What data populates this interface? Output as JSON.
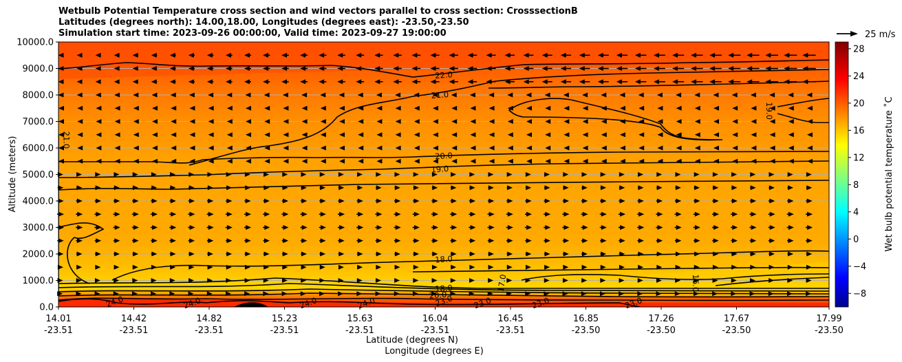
{
  "title_lines": [
    "Wetbulb Potential Temperature cross section and wind vectors parallel to cross section: CrosssectionB",
    "Latitudes (degrees north): 14.00,18.00, Longitudes (degrees east): -23.50,-23.50",
    "Simulation start time: 2023-09-26 00:00:00, Valid time: 2023-09-27 19:00:00"
  ],
  "chart_data": {
    "type": "heatmap",
    "xlabel": "Latitude (degrees N)",
    "xlabel2": "Longitude (degrees E)",
    "ylabel": "Altitude (meters)",
    "ylim": [
      0,
      10000
    ],
    "y_ticks": [
      "0.0",
      "1000.0",
      "2000.0",
      "3000.0",
      "4000.0",
      "5000.0",
      "6000.0",
      "7000.0",
      "8000.0",
      "9000.0",
      "10000.0"
    ],
    "x_ticks": [
      {
        "lat": "14.01",
        "lon": "-23.51"
      },
      {
        "lat": "14.42",
        "lon": "-23.51"
      },
      {
        "lat": "14.82",
        "lon": "-23.51"
      },
      {
        "lat": "15.23",
        "lon": "-23.51"
      },
      {
        "lat": "15.63",
        "lon": "-23.51"
      },
      {
        "lat": "16.04",
        "lon": "-23.51"
      },
      {
        "lat": "16.45",
        "lon": "-23.51"
      },
      {
        "lat": "16.85",
        "lon": "-23.50"
      },
      {
        "lat": "17.26",
        "lon": "-23.50"
      },
      {
        "lat": "17.67",
        "lon": "-23.50"
      },
      {
        "lat": "17.99",
        "lon": "-23.50"
      }
    ],
    "grid": "horizontal",
    "colorbar": {
      "label": "Wet bulb potential temperature ˚C",
      "range": [
        -10,
        29
      ],
      "ticks": [
        "−8",
        "−4",
        "0",
        "4",
        "8",
        "12",
        "16",
        "20",
        "24",
        "28"
      ],
      "colormap": "jet"
    },
    "quiver_key": {
      "label": "25 m/s",
      "speed": 25
    },
    "contour_labels": [
      {
        "text": "22.0",
        "lat": 16.0,
        "alt": 8750
      },
      {
        "text": "21.0",
        "lat": 15.98,
        "alt": 8000
      },
      {
        "text": "21.0",
        "lat": 14.05,
        "alt": 6300
      },
      {
        "text": "19.0",
        "lat": 17.68,
        "alt": 7400
      },
      {
        "text": "20.0",
        "lat": 16.0,
        "alt": 5700
      },
      {
        "text": "19.0",
        "lat": 15.98,
        "alt": 5200
      },
      {
        "text": "18.0",
        "lat": 16.0,
        "alt": 1800
      },
      {
        "text": "18.0",
        "lat": 16.0,
        "alt": 700
      },
      {
        "text": "20.0",
        "lat": 15.97,
        "alt": 450
      },
      {
        "text": "23.0",
        "lat": 16.0,
        "alt": 230
      },
      {
        "text": "17.0",
        "lat": 16.3,
        "alt": 900
      },
      {
        "text": "16.0",
        "lat": 17.3,
        "alt": 900
      },
      {
        "text": "24.0",
        "lat": 14.3,
        "alt": 200
      },
      {
        "text": "24.0",
        "lat": 14.7,
        "alt": 150
      },
      {
        "text": "24.0",
        "lat": 15.3,
        "alt": 150
      },
      {
        "text": "24.0",
        "lat": 15.6,
        "alt": 150
      },
      {
        "text": "23.0",
        "lat": 16.2,
        "alt": 150
      },
      {
        "text": "23.0",
        "lat": 16.5,
        "alt": 150
      },
      {
        "text": "23.0",
        "lat": 16.98,
        "alt": 150
      }
    ],
    "wind_regimes": [
      {
        "alt_range": [
          8000,
          10000
        ],
        "direction": "southward",
        "speed_range": [
          8,
          22
        ]
      },
      {
        "alt_range": [
          5500,
          8000
        ],
        "direction": "southward",
        "speed_range": [
          2,
          8
        ]
      },
      {
        "alt_range": [
          500,
          5000
        ],
        "direction": "northward",
        "speed_range": [
          4,
          12
        ]
      }
    ]
  },
  "colors": {
    "background_orange": "#ffa600",
    "upper_red": "#ff5000",
    "surface_red": "#ff3000",
    "yellow_band": "#ffd600"
  }
}
